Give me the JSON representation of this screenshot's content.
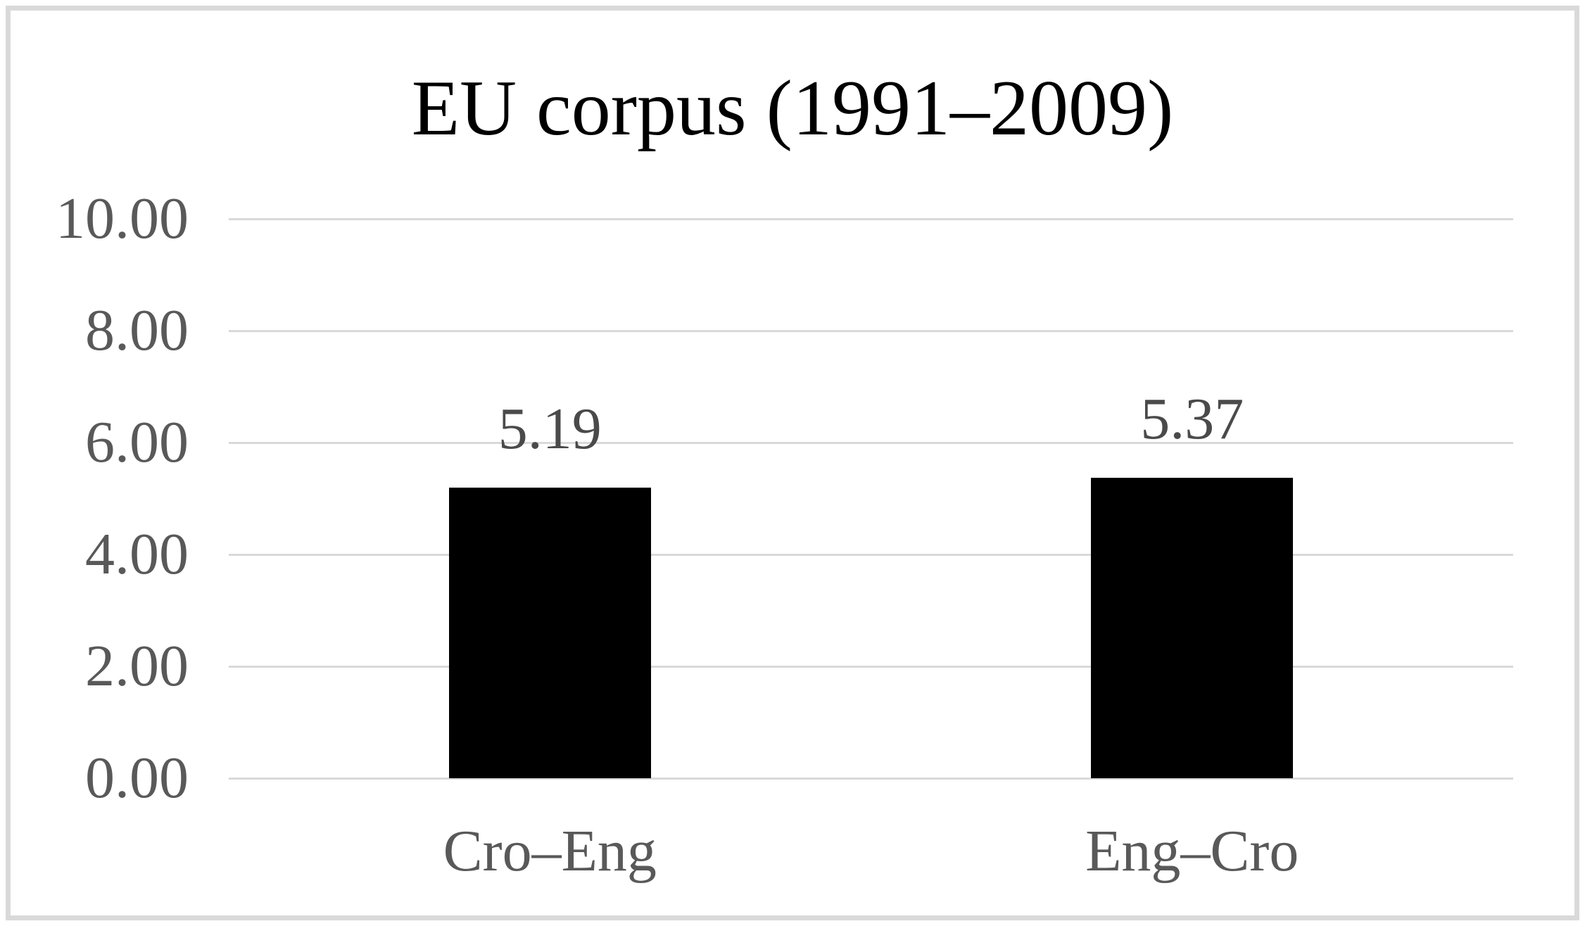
{
  "colors": {
    "frame_border": "#D9D9D9",
    "gridline": "#D9D9D9",
    "bar_fill": "#000000",
    "axis_text": "#595959",
    "data_label_text": "#4A4A4A",
    "title_text": "#000000",
    "background": "#FFFFFF"
  },
  "chart_data": {
    "type": "bar",
    "title": "EU corpus (1991–2009)",
    "categories": [
      "Cro–Eng",
      "Eng–Cro"
    ],
    "values": [
      5.19,
      5.37
    ],
    "data_labels": [
      "5.19",
      "5.37"
    ],
    "xlabel": "",
    "ylabel": "",
    "ylim": [
      0,
      10
    ],
    "y_tick_step": 2,
    "y_tick_labels": [
      "0.00",
      "2.00",
      "4.00",
      "6.00",
      "8.00",
      "10.00"
    ],
    "grid": true,
    "legend_position": "none",
    "bar_orientation": "vertical"
  }
}
